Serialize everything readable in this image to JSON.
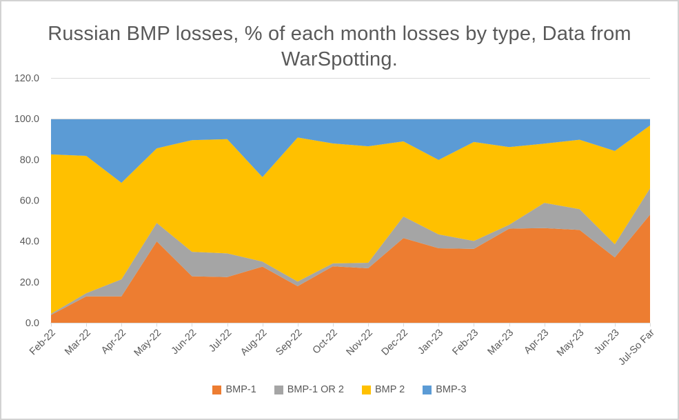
{
  "chart": {
    "title": "Russian BMP losses, % of each month losses by type, Data from\nWarSpotting."
  },
  "chart_data": {
    "type": "area",
    "stacking": "percent",
    "title": "Russian BMP losses, % of each month losses by type, Data from WarSpotting.",
    "xlabel": "",
    "ylabel": "",
    "ylim": [
      0,
      120
    ],
    "ytick_step": 20,
    "ytick_labels": [
      "0.0",
      "20.0",
      "40.0",
      "60.0",
      "80.0",
      "100.0",
      "120.0"
    ],
    "grid": true,
    "legend_position": "bottom",
    "categories": [
      "Feb-22",
      "Mar-22",
      "Apr-22",
      "May-22",
      "Jun-22",
      "Jul-22",
      "Aug-22",
      "Sep-22",
      "Oct-22",
      "Nov-22",
      "Dec-22",
      "Jan-23",
      "Feb-23",
      "Mar-23",
      "Apr-23",
      "May-23",
      "Jun-23",
      "Jul-So Far"
    ],
    "series": [
      {
        "name": "BMP-1",
        "color": "#ED7D31",
        "values": [
          3.8,
          12.9,
          12.9,
          39.9,
          22.8,
          22.4,
          27.5,
          17.9,
          27.7,
          26.7,
          41.5,
          36.5,
          36.2,
          46.1,
          46.4,
          45.5,
          32.0,
          53.0
        ]
      },
      {
        "name": "BMP-1 OR 2",
        "color": "#A5A5A5",
        "values": [
          0.6,
          1.6,
          8.4,
          9.0,
          12.0,
          11.6,
          2.5,
          2.3,
          1.4,
          2.7,
          10.6,
          6.8,
          3.9,
          1.9,
          12.4,
          10.2,
          6.5,
          12.9
        ]
      },
      {
        "name": "BMP 2",
        "color": "#FFC000",
        "values": [
          78.1,
          67.3,
          47.3,
          36.6,
          54.7,
          56.0,
          41.4,
          70.6,
          58.8,
          57.1,
          36.8,
          36.5,
          48.5,
          38.1,
          29.0,
          34.0,
          45.7,
          30.8
        ]
      },
      {
        "name": "BMP-3",
        "color": "#5B9BD5",
        "values": [
          17.5,
          18.2,
          31.4,
          14.5,
          10.5,
          10.0,
          28.6,
          9.2,
          12.1,
          13.5,
          11.1,
          20.2,
          11.4,
          13.9,
          12.2,
          10.3,
          15.8,
          3.3
        ]
      }
    ],
    "colors": {
      "text": "#595959",
      "grid_axis": "#D9D9D9",
      "frame_border": "#D2D2D2"
    }
  }
}
